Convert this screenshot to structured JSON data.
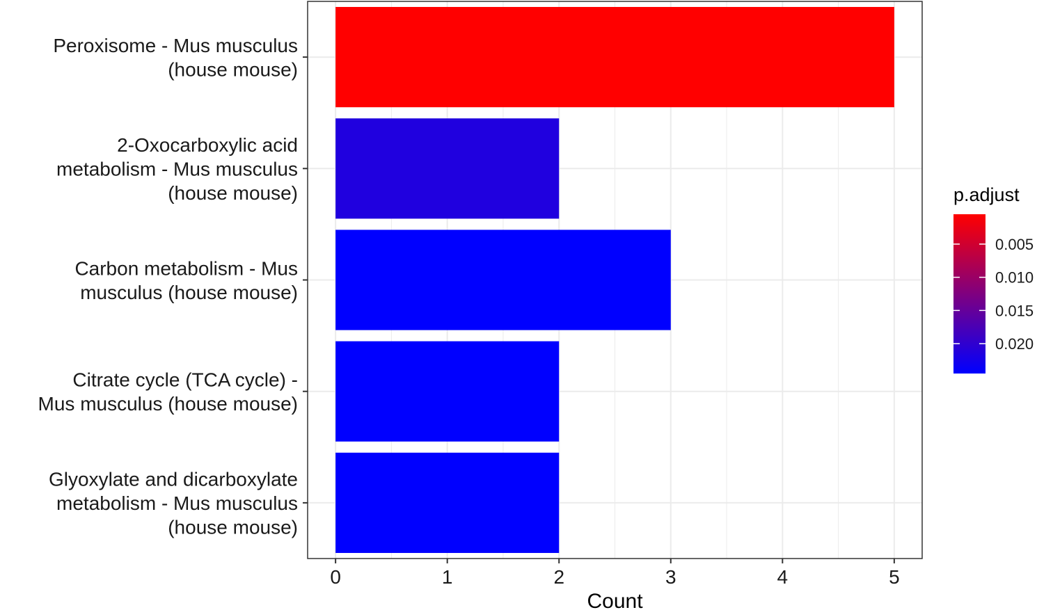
{
  "chart_data": {
    "type": "bar",
    "orientation": "horizontal",
    "categories": [
      [
        "Peroxisome - Mus musculus",
        "(house mouse)"
      ],
      [
        "2-Oxocarboxylic acid",
        "metabolism - Mus musculus",
        "(house mouse)"
      ],
      [
        "Carbon metabolism - Mus",
        "musculus (house mouse)"
      ],
      [
        "Citrate cycle (TCA cycle) -",
        "Mus musculus (house mouse)"
      ],
      [
        "Glyoxylate and dicarboxylate",
        "metabolism - Mus musculus",
        "(house mouse)"
      ]
    ],
    "values": [
      5,
      2,
      3,
      2,
      2
    ],
    "p_adjust": [
      0.0005,
      0.0215,
      0.0245,
      0.0245,
      0.0245
    ],
    "xlabel": "Count",
    "ylabel": "",
    "xlim": [
      -0.25,
      5.25
    ],
    "xticks": [
      "0",
      "1",
      "2",
      "3",
      "4",
      "5"
    ],
    "grid": true,
    "legend": {
      "title": "p.adjust",
      "placement": "right",
      "ticks": [
        "0.005",
        "0.010",
        "0.015",
        "0.020"
      ],
      "tick_values": [
        0.005,
        0.01,
        0.015,
        0.02
      ],
      "range": [
        0.0005,
        0.0245
      ],
      "color_low": "#FF0000",
      "color_high": "#0000FF"
    }
  }
}
